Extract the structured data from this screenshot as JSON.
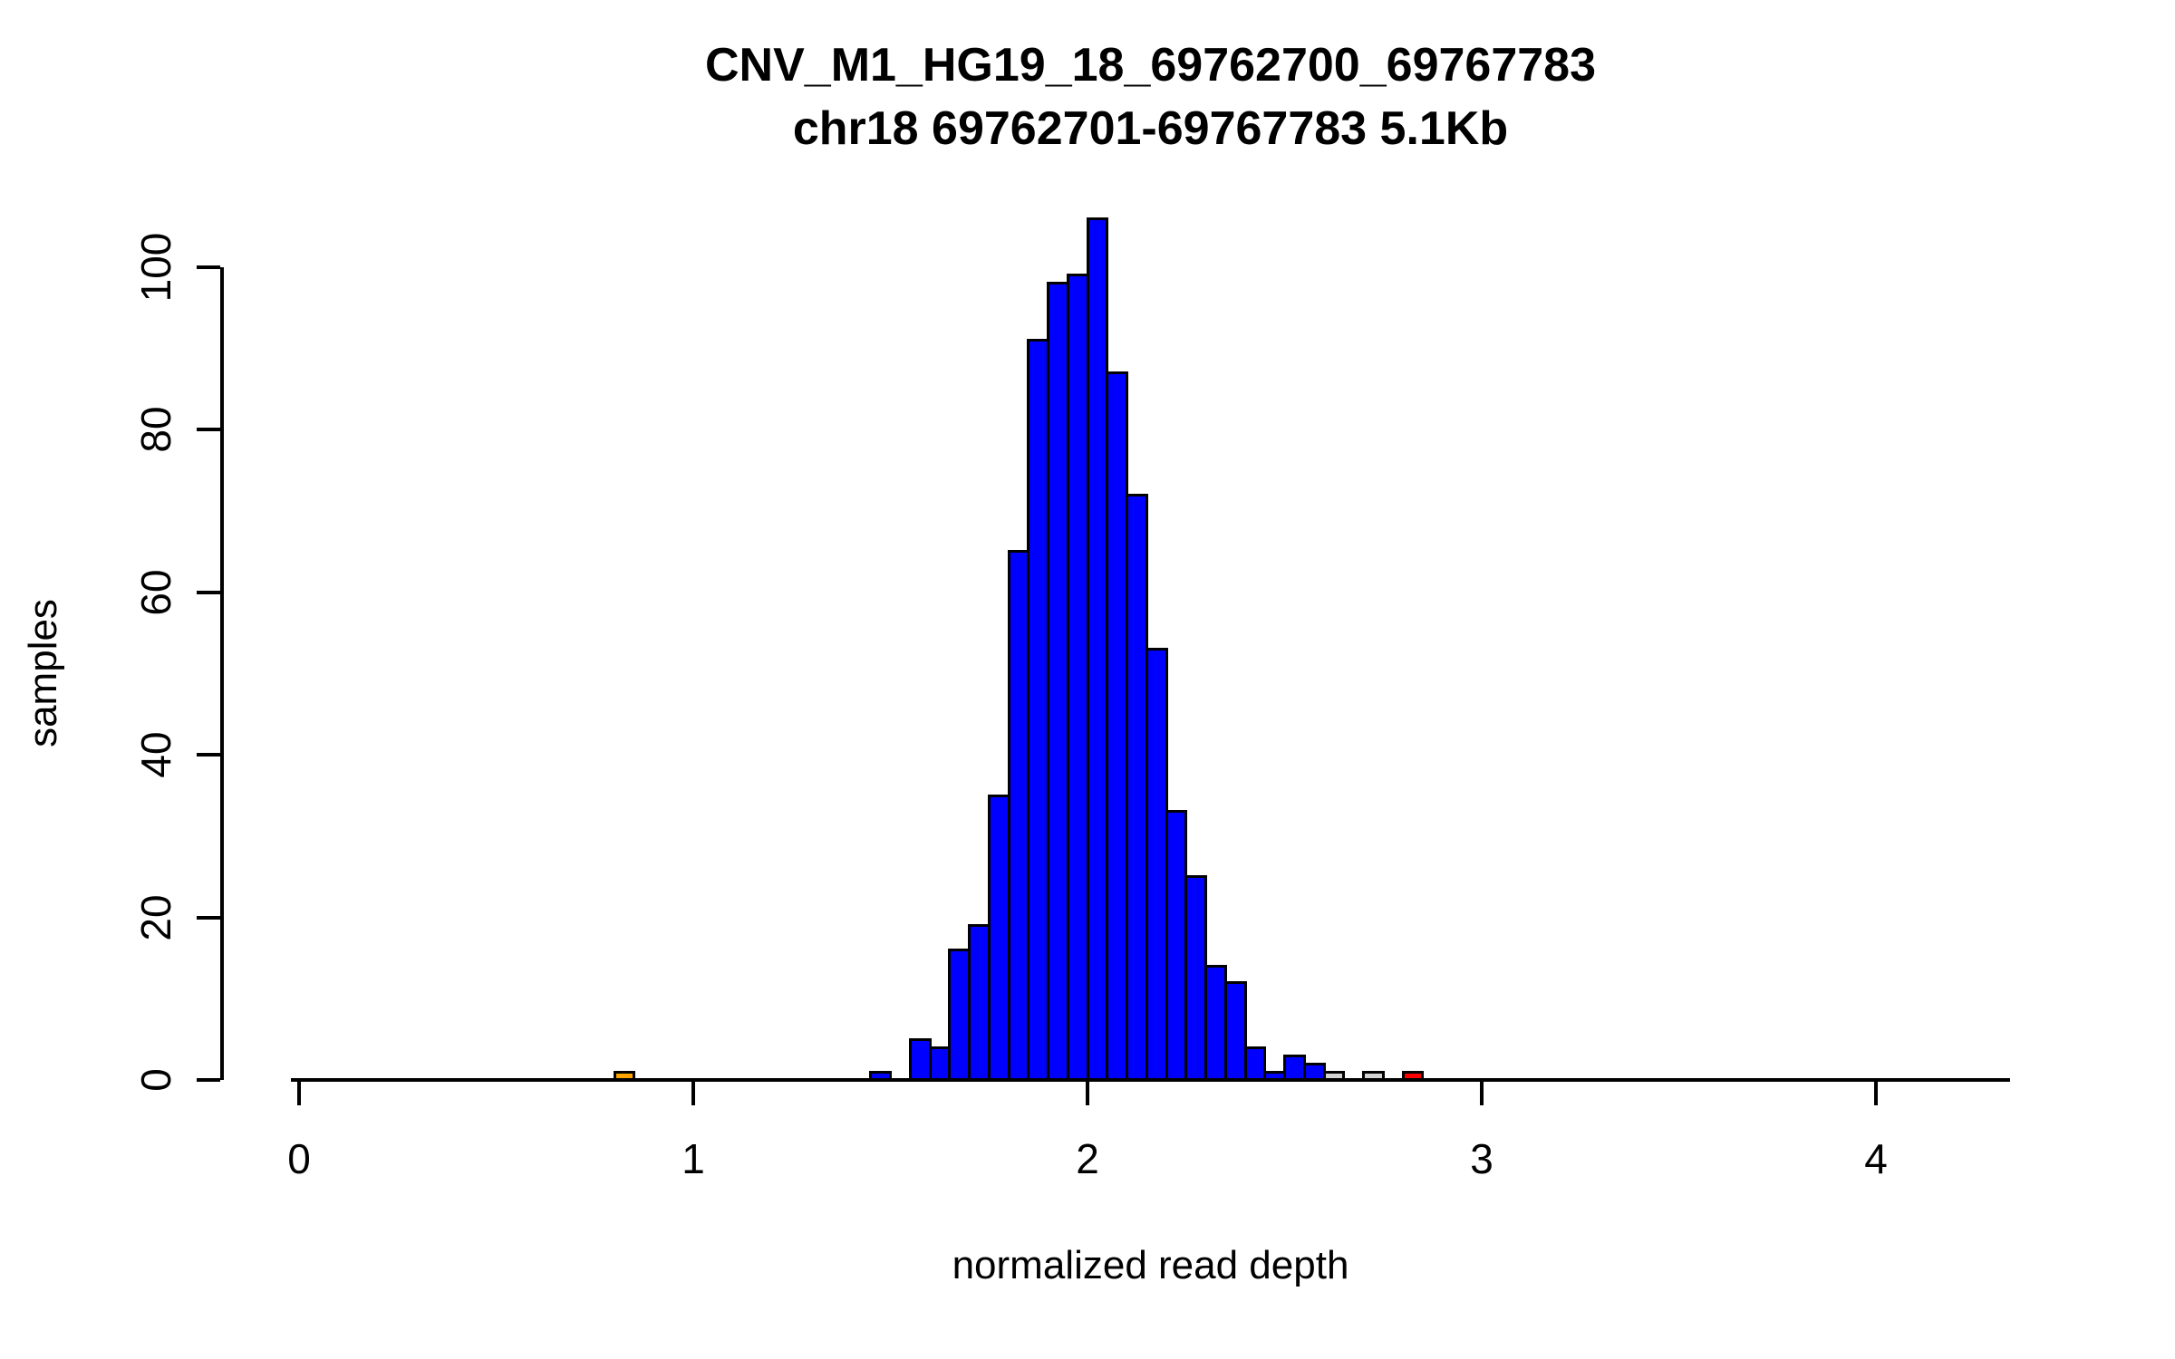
{
  "title": "CNV_M1_HG19_18_69762700_69767783",
  "subtitle": "chr18 69762701-69767783 5.1Kb",
  "xlabel": "normalized read depth",
  "ylabel": "samples",
  "palette": {
    "bar_blue": "#0000FF",
    "bar_orange": "#FFA500",
    "bar_red": "#FF0000",
    "bar_gray": "#D3D3D3",
    "border": "#000000",
    "background": "#FFFFFF"
  },
  "chart_data": {
    "type": "bar",
    "subtype": "histogram",
    "title": "CNV_M1_HG19_18_69762700_69767783",
    "subtitle": "chr18 69762701-69767783 5.1Kb",
    "xlabel": "normalized read depth",
    "ylabel": "samples",
    "bin_width": 0.05,
    "x_ticks": [
      0,
      1,
      2,
      3,
      4
    ],
    "y_ticks": [
      0,
      20,
      40,
      60,
      80,
      100
    ],
    "xlim": [
      -0.02,
      4.34
    ],
    "ylim": [
      0,
      106
    ],
    "grid": false,
    "legend": false,
    "bins": [
      {
        "x": 0.8,
        "count": 1,
        "color": "#FFA500"
      },
      {
        "x": 1.45,
        "count": 1,
        "color": "#0000FF"
      },
      {
        "x": 1.5,
        "count": 0,
        "color": "#0000FF"
      },
      {
        "x": 1.55,
        "count": 5,
        "color": "#0000FF"
      },
      {
        "x": 1.6,
        "count": 4,
        "color": "#0000FF"
      },
      {
        "x": 1.65,
        "count": 16,
        "color": "#0000FF"
      },
      {
        "x": 1.7,
        "count": 19,
        "color": "#0000FF"
      },
      {
        "x": 1.75,
        "count": 35,
        "color": "#0000FF"
      },
      {
        "x": 1.8,
        "count": 65,
        "color": "#0000FF"
      },
      {
        "x": 1.85,
        "count": 91,
        "color": "#0000FF"
      },
      {
        "x": 1.9,
        "count": 98,
        "color": "#0000FF"
      },
      {
        "x": 1.95,
        "count": 99,
        "color": "#0000FF"
      },
      {
        "x": 2.0,
        "count": 106,
        "color": "#0000FF"
      },
      {
        "x": 2.05,
        "count": 87,
        "color": "#0000FF"
      },
      {
        "x": 2.1,
        "count": 72,
        "color": "#0000FF"
      },
      {
        "x": 2.15,
        "count": 53,
        "color": "#0000FF"
      },
      {
        "x": 2.2,
        "count": 33,
        "color": "#0000FF"
      },
      {
        "x": 2.25,
        "count": 25,
        "color": "#0000FF"
      },
      {
        "x": 2.3,
        "count": 14,
        "color": "#0000FF"
      },
      {
        "x": 2.35,
        "count": 12,
        "color": "#0000FF"
      },
      {
        "x": 2.4,
        "count": 4,
        "color": "#0000FF"
      },
      {
        "x": 2.45,
        "count": 1,
        "color": "#0000FF"
      },
      {
        "x": 2.5,
        "count": 3,
        "color": "#0000FF"
      },
      {
        "x": 2.55,
        "count": 2,
        "color": "#0000FF"
      },
      {
        "x": 2.6,
        "count": 1,
        "color": "#D3D3D3"
      },
      {
        "x": 2.65,
        "count": 0,
        "color": "#D3D3D3"
      },
      {
        "x": 2.7,
        "count": 1,
        "color": "#D3D3D3"
      },
      {
        "x": 2.75,
        "count": 0,
        "color": "#D3D3D3"
      },
      {
        "x": 2.8,
        "count": 1,
        "color": "#FF0000"
      }
    ]
  }
}
